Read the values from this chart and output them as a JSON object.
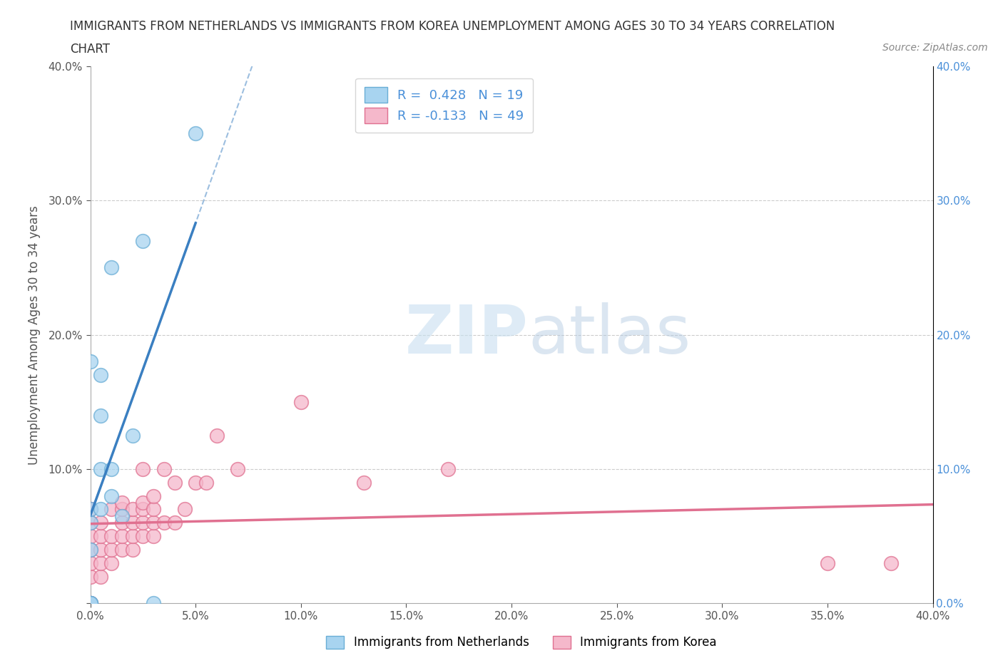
{
  "title": "IMMIGRANTS FROM NETHERLANDS VS IMMIGRANTS FROM KOREA UNEMPLOYMENT AMONG AGES 30 TO 34 YEARS CORRELATION\nCHART",
  "source_text": "Source: ZipAtlas.com",
  "ylabel": "Unemployment Among Ages 30 to 34 years",
  "xlim": [
    0.0,
    0.4
  ],
  "ylim": [
    0.0,
    0.4
  ],
  "x_ticks": [
    0.0,
    0.05,
    0.1,
    0.15,
    0.2,
    0.25,
    0.3,
    0.35,
    0.4
  ],
  "y_ticks_left": [
    0.0,
    0.1,
    0.2,
    0.3,
    0.4
  ],
  "y_ticks_right": [
    0.0,
    0.1,
    0.2,
    0.3,
    0.4
  ],
  "netherlands_color": "#a8d4f0",
  "netherlands_edge_color": "#6aaed6",
  "korea_color": "#f5b8cb",
  "korea_edge_color": "#e07090",
  "netherlands_R": 0.428,
  "netherlands_N": 19,
  "korea_R": -0.133,
  "korea_N": 49,
  "legend_label_netherlands": "Immigrants from Netherlands",
  "legend_label_korea": "Immigrants from Korea",
  "netherlands_line_color": "#3a7fc1",
  "korea_line_color": "#e07090",
  "watermark_zip": "ZIP",
  "watermark_atlas": "atlas",
  "netherlands_x": [
    0.0,
    0.0,
    0.0,
    0.0,
    0.0,
    0.0,
    0.0,
    0.005,
    0.005,
    0.005,
    0.005,
    0.01,
    0.01,
    0.01,
    0.015,
    0.02,
    0.025,
    0.03,
    0.05
  ],
  "netherlands_y": [
    0.0,
    0.0,
    0.0,
    0.04,
    0.06,
    0.07,
    0.18,
    0.07,
    0.1,
    0.14,
    0.17,
    0.08,
    0.1,
    0.25,
    0.065,
    0.125,
    0.27,
    0.0,
    0.35
  ],
  "korea_x": [
    0.0,
    0.0,
    0.0,
    0.0,
    0.0,
    0.0,
    0.0,
    0.0,
    0.005,
    0.005,
    0.005,
    0.005,
    0.005,
    0.01,
    0.01,
    0.01,
    0.01,
    0.015,
    0.015,
    0.015,
    0.015,
    0.015,
    0.02,
    0.02,
    0.02,
    0.02,
    0.025,
    0.025,
    0.025,
    0.025,
    0.025,
    0.03,
    0.03,
    0.03,
    0.03,
    0.035,
    0.035,
    0.04,
    0.04,
    0.045,
    0.05,
    0.055,
    0.06,
    0.07,
    0.1,
    0.13,
    0.17,
    0.35,
    0.38
  ],
  "korea_y": [
    0.0,
    0.0,
    0.02,
    0.03,
    0.04,
    0.05,
    0.06,
    0.07,
    0.02,
    0.03,
    0.04,
    0.05,
    0.06,
    0.03,
    0.04,
    0.05,
    0.07,
    0.04,
    0.05,
    0.06,
    0.07,
    0.075,
    0.04,
    0.05,
    0.06,
    0.07,
    0.05,
    0.06,
    0.07,
    0.075,
    0.1,
    0.05,
    0.06,
    0.07,
    0.08,
    0.06,
    0.1,
    0.06,
    0.09,
    0.07,
    0.09,
    0.09,
    0.125,
    0.1,
    0.15,
    0.09,
    0.1,
    0.03,
    0.03
  ]
}
